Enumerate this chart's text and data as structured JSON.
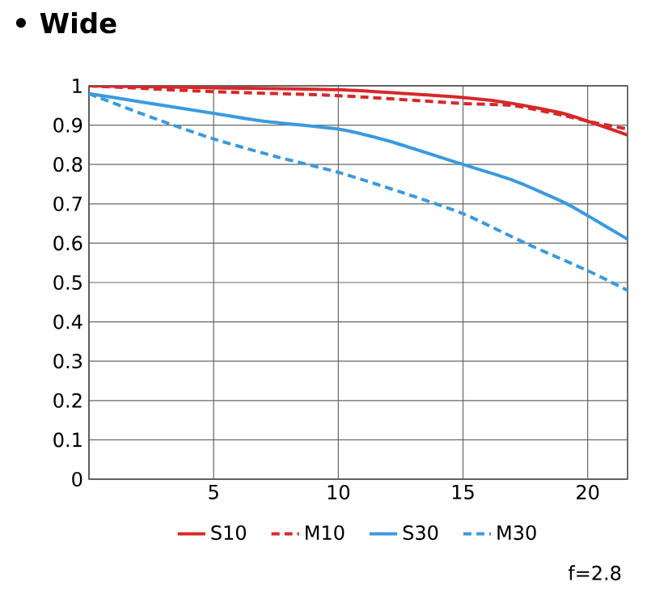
{
  "chart_data": {
    "type": "line",
    "title": "• Wide",
    "annotations": [
      "f=2.8"
    ],
    "xlim": [
      0,
      21.6
    ],
    "xticks": [
      {
        "value": 0,
        "label": null
      },
      5,
      10,
      15,
      20
    ],
    "ylim": [
      0,
      1
    ],
    "yticks": [
      0,
      0.1,
      0.2,
      0.3,
      0.4,
      0.5,
      0.6,
      0.7,
      0.8,
      0.9,
      1
    ],
    "grid": true,
    "legend": "bottom",
    "series": [
      {
        "name": "S10",
        "color": "#d7282a",
        "line_style": "solid",
        "x": [
          0,
          5,
          10,
          15,
          17,
          19,
          20,
          21.6
        ],
        "values": [
          1.0,
          0.995,
          0.99,
          0.97,
          0.955,
          0.93,
          0.91,
          0.875
        ]
      },
      {
        "name": "M10",
        "color": "#d7282a",
        "line_style": "dashed",
        "x": [
          0,
          5,
          10,
          15,
          17,
          19,
          20,
          21.6
        ],
        "values": [
          1.0,
          0.985,
          0.975,
          0.955,
          0.95,
          0.925,
          0.91,
          0.89
        ]
      },
      {
        "name": "S30",
        "color": "#3a9ae0",
        "line_style": "solid",
        "x": [
          0,
          2,
          5,
          7,
          10,
          12,
          15,
          17,
          19,
          20,
          21.6
        ],
        "values": [
          0.98,
          0.96,
          0.93,
          0.91,
          0.89,
          0.86,
          0.8,
          0.76,
          0.705,
          0.67,
          0.61
        ]
      },
      {
        "name": "M30",
        "color": "#3a9ae0",
        "line_style": "dashed",
        "x": [
          0,
          2.5,
          5,
          7.5,
          10,
          12.5,
          15,
          17.5,
          20,
          21.6
        ],
        "values": [
          0.98,
          0.92,
          0.865,
          0.82,
          0.78,
          0.73,
          0.675,
          0.6,
          0.53,
          0.48
        ]
      }
    ]
  }
}
